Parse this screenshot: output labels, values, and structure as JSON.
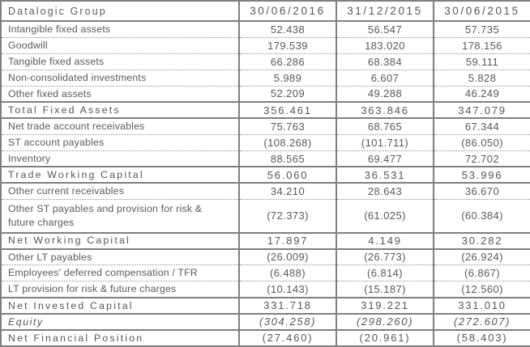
{
  "colors": {
    "text": "#58595c",
    "border_solid": "#7f7f7f",
    "border_dotted": "#8f8f8f",
    "background": "#ffffff"
  },
  "table": {
    "title": "Datalogic Group",
    "columns": [
      "30/06/2016",
      "31/12/2015",
      "30/06/2015"
    ],
    "rows": [
      {
        "label": "Intangible fixed assets",
        "values": [
          "52.438",
          "56.547",
          "57.735"
        ],
        "style": "normal",
        "separator": "dotted",
        "tall": false
      },
      {
        "label": "Goodwill",
        "values": [
          "179.539",
          "183.020",
          "178.156"
        ],
        "style": "normal",
        "separator": "dotted",
        "tall": false
      },
      {
        "label": "Tangible fixed assets",
        "values": [
          "66.286",
          "68.384",
          "59.111"
        ],
        "style": "normal",
        "separator": "dotted",
        "tall": false
      },
      {
        "label": "Non-consolidated investments",
        "values": [
          "5.989",
          "6.607",
          "5.828"
        ],
        "style": "normal",
        "separator": "dotted",
        "tall": false
      },
      {
        "label": "Other fixed assets",
        "values": [
          "52.209",
          "49.288",
          "46.249"
        ],
        "style": "normal",
        "separator": "solid",
        "tall": false
      },
      {
        "label": "Total Fixed Assets",
        "values": [
          "356.461",
          "363.846",
          "347.079"
        ],
        "style": "total",
        "separator": "solid",
        "tall": false
      },
      {
        "label": "Net trade account receivables",
        "values": [
          "75.763",
          "68.765",
          "67.344"
        ],
        "style": "normal",
        "separator": "dotted",
        "tall": false
      },
      {
        "label": "ST account payables",
        "values": [
          "(108.268)",
          "(101.711)",
          "(86.050)"
        ],
        "style": "normal",
        "separator": "dotted",
        "tall": false
      },
      {
        "label": "Inventory",
        "values": [
          "88.565",
          "69.477",
          "72.702"
        ],
        "style": "normal",
        "separator": "solid",
        "tall": false
      },
      {
        "label": "Trade Working Capital",
        "values": [
          "56.060",
          "36.531",
          "53.996"
        ],
        "style": "total",
        "separator": "solid",
        "tall": false
      },
      {
        "label": "Other current receivables",
        "values": [
          "34.210",
          "28.643",
          "36.670"
        ],
        "style": "normal",
        "separator": "dotted",
        "tall": false
      },
      {
        "label": "Other ST payables and provision for risk & future charges",
        "values": [
          "(72.373)",
          "(61.025)",
          "(60.384)"
        ],
        "style": "normal",
        "separator": "solid",
        "tall": true
      },
      {
        "label": "Net Working Capital",
        "values": [
          "17.897",
          "4.149",
          "30.282"
        ],
        "style": "total",
        "separator": "solid",
        "tall": false
      },
      {
        "label": "Other LT payables",
        "values": [
          "(26.009)",
          "(26.773)",
          "(26.924)"
        ],
        "style": "normal",
        "separator": "dotted",
        "tall": false
      },
      {
        "label": "Employees' deferred compensation / TFR",
        "values": [
          "(6.488)",
          "(6.814)",
          "(6.867)"
        ],
        "style": "normal",
        "separator": "dotted",
        "tall": false
      },
      {
        "label": "LT provision for risk & future charges",
        "values": [
          "(10.143)",
          "(15.187)",
          "(12.560)"
        ],
        "style": "normal",
        "separator": "solid",
        "tall": false
      },
      {
        "label": "Net Invested Capital",
        "values": [
          "331.718",
          "319.221",
          "331.010"
        ],
        "style": "total",
        "separator": "solid",
        "tall": false
      },
      {
        "label": "Equity",
        "values": [
          "(304.258)",
          "(298.260)",
          "(272.607)"
        ],
        "style": "italic",
        "separator": "solid",
        "tall": false
      },
      {
        "label": "Net Financial Position",
        "values": [
          "(27.460)",
          "(20.961)",
          "(58.403)"
        ],
        "style": "total",
        "separator": "none",
        "tall": false
      }
    ]
  }
}
